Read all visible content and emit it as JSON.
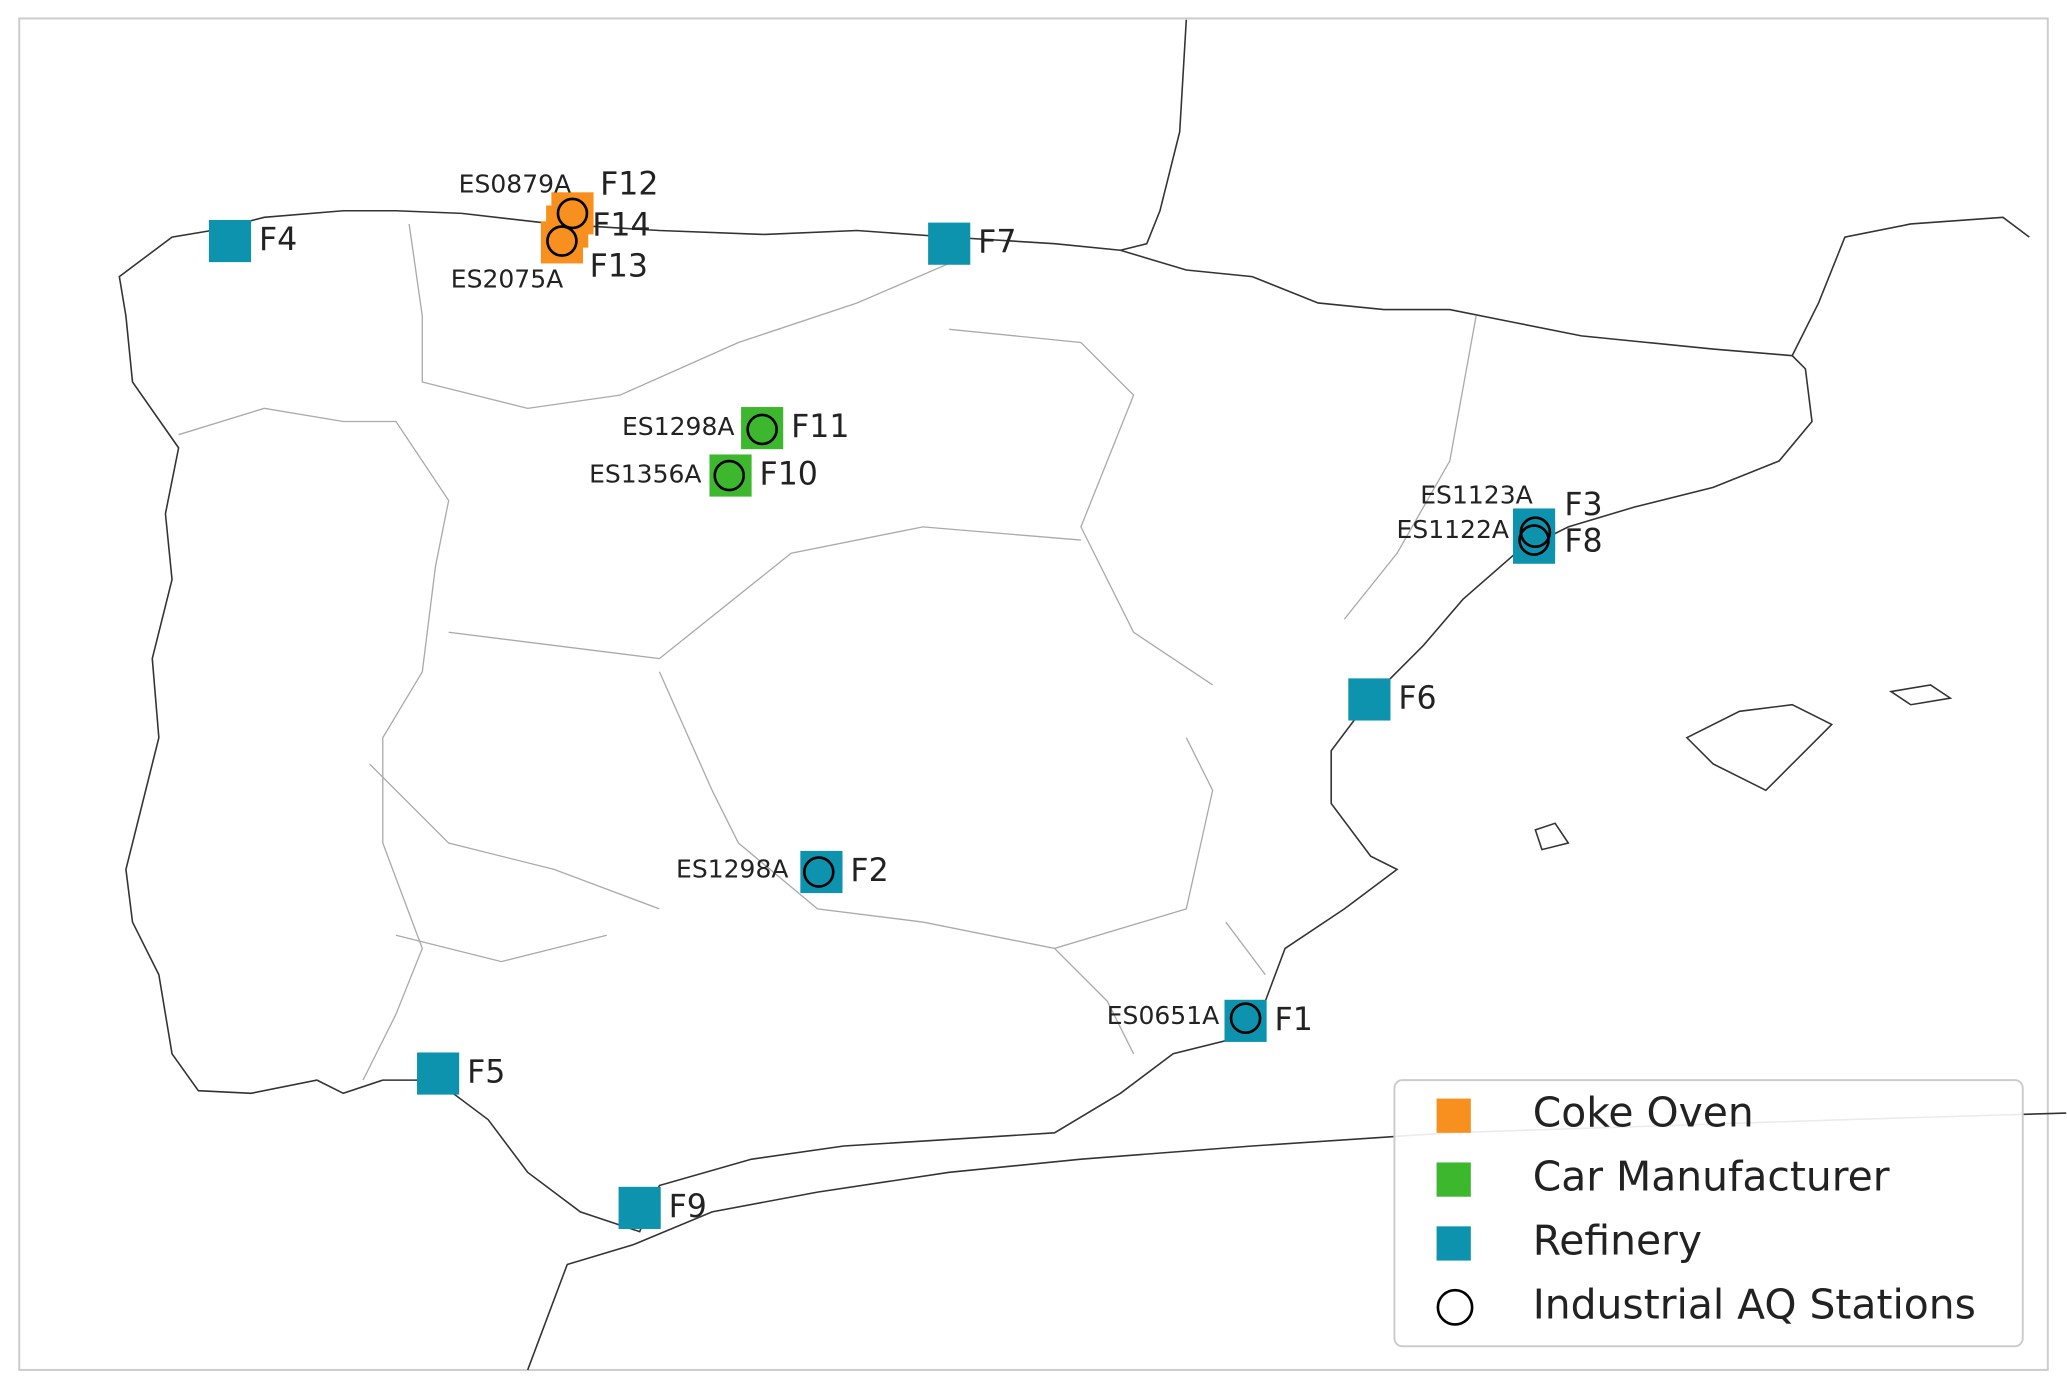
{
  "map": {
    "legend": [
      {
        "label": "Coke Oven",
        "color": "#f7901e"
      },
      {
        "label": "Car Manufacturer",
        "color": "#3db82e"
      },
      {
        "label": "Refinery",
        "color": "#0d93ad"
      },
      {
        "label": "Industrial AQ Stations"
      }
    ],
    "facilities": [
      {
        "label": "F1",
        "kind": 2
      },
      {
        "label": "F2",
        "kind": 2
      },
      {
        "label": "F3",
        "kind": 2
      },
      {
        "label": "F4",
        "kind": 2
      },
      {
        "label": "F5",
        "kind": 2
      },
      {
        "label": "F6",
        "kind": 2
      },
      {
        "label": "F7",
        "kind": 2
      },
      {
        "label": "F8",
        "kind": 2
      },
      {
        "label": "F9",
        "kind": 2
      },
      {
        "label": "F10",
        "kind": 1
      },
      {
        "label": "F11",
        "kind": 1
      },
      {
        "label": "F12",
        "kind": 0
      },
      {
        "label": "F13",
        "kind": 0
      },
      {
        "label": "F14",
        "kind": 0
      }
    ],
    "stations": [
      {
        "label": "ES0879A"
      },
      {
        "label": "ES2075A"
      },
      {
        "label": "ES1298A"
      },
      {
        "label": "ES1356A"
      },
      {
        "label": "ES1123A"
      },
      {
        "label": "ES1122A"
      },
      {
        "label": "ES1298A"
      },
      {
        "label": "ES0651A"
      }
    ]
  }
}
